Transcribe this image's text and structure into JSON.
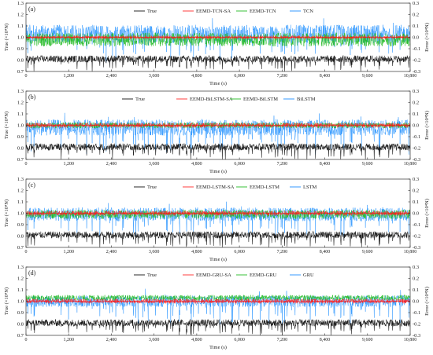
{
  "figure": {
    "panels": [
      {
        "label": "(a)",
        "legend": [
          "True",
          "EEMD-TCN-SA",
          "EEMD-TCN",
          "TCN"
        ]
      },
      {
        "label": "(b)",
        "legend": [
          "True",
          "EEMD-BiLSTM-SA",
          "EEMD-BiLSTM",
          "BiLSTM"
        ]
      },
      {
        "label": "(c)",
        "legend": [
          "True",
          "EEMD-LSTM-SA",
          "EEMD-LSTM",
          "LSTM"
        ]
      },
      {
        "label": "(d)",
        "legend": [
          "True",
          "EEMD-GRU-SA",
          "EEMD-GRU",
          "GRU"
        ]
      }
    ]
  },
  "colors": {
    "true": "#111111",
    "sa": "#ff2a2a",
    "eemd": "#22bb22",
    "base": "#1e8fff",
    "axis": "#333333",
    "zero_line": "#ff0000"
  },
  "chart_data": [
    {
      "type": "line",
      "panel": "(a)",
      "xlabel": "Time (s)",
      "ylabel_left": "True (×10⁴N)",
      "ylabel_right": "Error (×10⁴N)",
      "xlim": [
        0,
        10800
      ],
      "x_ticks": [
        "0",
        "1,200",
        "2,400",
        "3,600",
        "4,800",
        "6,000",
        "7,200",
        "8,400",
        "9,600",
        "10,800"
      ],
      "ylim_left": [
        0.7,
        1.3
      ],
      "y_ticks_left": [
        "0.7",
        "0.8",
        "0.9",
        "1.0",
        "1.1",
        "1.2",
        "1.3"
      ],
      "ylim_right": [
        -0.3,
        0.3
      ],
      "y_ticks_right": [
        "-0.3",
        "-0.2",
        "-0.1",
        "0.0",
        "0.1",
        "0.2",
        "0.3"
      ],
      "series": [
        {
          "name": "True",
          "axis": "left",
          "baseline": 0.81,
          "amplitude": 0.03
        },
        {
          "name": "EEMD-TCN-SA",
          "axis": "right",
          "center": 0.0,
          "amplitude": 0.015
        },
        {
          "name": "EEMD-TCN",
          "axis": "right",
          "center": -0.02,
          "amplitude": 0.06
        },
        {
          "name": "TCN",
          "axis": "right",
          "center": 0.03,
          "amplitude": 0.08
        }
      ]
    },
    {
      "type": "line",
      "panel": "(b)",
      "xlabel": "Time (s)",
      "ylabel_left": "True (×10⁴N)",
      "ylabel_right": "Error (×10⁴N)",
      "xlim": [
        0,
        10800
      ],
      "x_ticks": [
        "0",
        "1,200",
        "2,400",
        "3,600",
        "4,800",
        "6,000",
        "7,200",
        "8,400",
        "9,600",
        "10,800"
      ],
      "ylim_left": [
        0.7,
        1.3
      ],
      "y_ticks_left": [
        "0.7",
        "0.8",
        "0.9",
        "1.0",
        "1.1",
        "1.2",
        "1.3"
      ],
      "ylim_right": [
        -0.3,
        0.3
      ],
      "y_ticks_right": [
        "-0.3",
        "-0.2",
        "-0.1",
        "0.0",
        "0.1",
        "0.2",
        "0.3"
      ],
      "series": [
        {
          "name": "True",
          "axis": "left",
          "baseline": 0.81,
          "amplitude": 0.03
        },
        {
          "name": "EEMD-BiLSTM-SA",
          "axis": "right",
          "center": 0.0,
          "amplitude": 0.02
        },
        {
          "name": "EEMD-BiLSTM",
          "axis": "right",
          "center": 0.0,
          "amplitude": 0.025
        },
        {
          "name": "BiLSTM",
          "axis": "right",
          "center": -0.02,
          "amplitude": 0.07
        }
      ]
    },
    {
      "type": "line",
      "panel": "(c)",
      "xlabel": "Time (s)",
      "ylabel_left": "True (×10⁴N)",
      "ylabel_right": "Error (×10⁴N)",
      "xlim": [
        0,
        10800
      ],
      "x_ticks": [
        "0",
        "1,200",
        "2,400",
        "3,600",
        "4,800",
        "6,000",
        "7,200",
        "8,400",
        "9,600",
        "10,800"
      ],
      "ylim_left": [
        0.7,
        1.3
      ],
      "y_ticks_left": [
        "0.7",
        "0.8",
        "0.9",
        "1.0",
        "1.1",
        "1.2",
        "1.3"
      ],
      "ylim_right": [
        -0.3,
        0.3
      ],
      "y_ticks_right": [
        "-0.3",
        "-0.2",
        "-0.1",
        "0.0",
        "0.1",
        "0.2",
        "0.3"
      ],
      "series": [
        {
          "name": "True",
          "axis": "left",
          "baseline": 0.81,
          "amplitude": 0.03
        },
        {
          "name": "EEMD-LSTM-SA",
          "axis": "right",
          "center": 0.0,
          "amplitude": 0.02
        },
        {
          "name": "EEMD-LSTM",
          "axis": "right",
          "center": -0.01,
          "amplitude": 0.04
        },
        {
          "name": "LSTM",
          "axis": "right",
          "center": -0.01,
          "amplitude": 0.06
        }
      ]
    },
    {
      "type": "line",
      "panel": "(d)",
      "xlabel": "Time (s)",
      "ylabel_left": "True (×10⁴N)",
      "ylabel_right": "Error (×10⁴N)",
      "xlim": [
        0,
        10800
      ],
      "x_ticks": [
        "0",
        "1,200",
        "2,400",
        "3,600",
        "4,800",
        "6,000",
        "7,200",
        "8,400",
        "9,600",
        "10,800"
      ],
      "ylim_left": [
        0.7,
        1.3
      ],
      "y_ticks_left": [
        "0.7",
        "0.8",
        "0.9",
        "1.0",
        "1.1",
        "1.2",
        "1.3"
      ],
      "ylim_right": [
        -0.3,
        0.3
      ],
      "y_ticks_right": [
        "-0.3",
        "-0.2",
        "-0.1",
        "0.0",
        "0.1",
        "0.2",
        "0.3"
      ],
      "series": [
        {
          "name": "True",
          "axis": "left",
          "baseline": 0.81,
          "amplitude": 0.03
        },
        {
          "name": "EEMD-GRU-SA",
          "axis": "right",
          "center": 0.0,
          "amplitude": 0.02
        },
        {
          "name": "EEMD-GRU",
          "axis": "right",
          "center": 0.03,
          "amplitude": 0.025
        },
        {
          "name": "GRU",
          "axis": "right",
          "center": 0.0,
          "amplitude": 0.05
        }
      ]
    }
  ]
}
